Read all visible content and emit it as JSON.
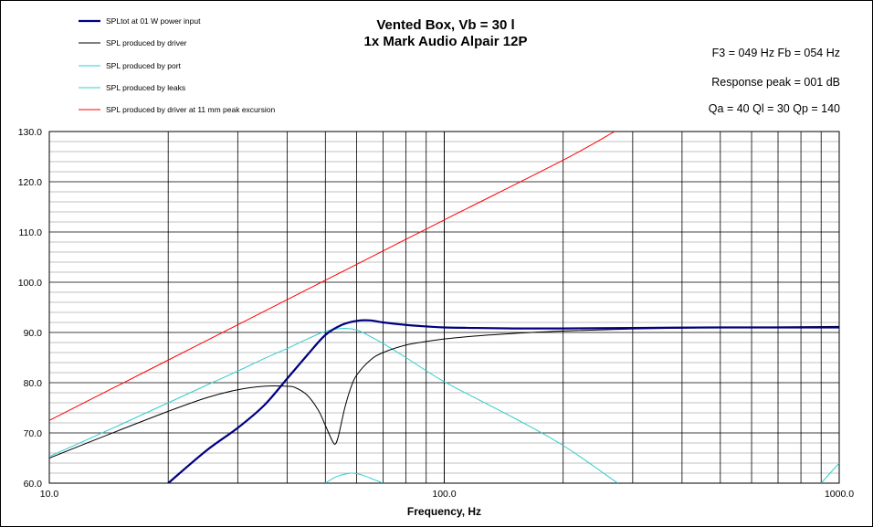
{
  "chart_data": {
    "type": "line",
    "title": "Vented Box, Vb = 30 l",
    "subtitle": "1x Mark Audio Alpair 12P",
    "info": [
      "F3 = 049 Hz  Fb = 054 Hz",
      "Response  peak = 001 dB",
      "Qa = 40  Ql = 30  Qp = 140"
    ],
    "xlabel": "Frequency, Hz",
    "ylabel": "",
    "xscale": "log",
    "xlim": [
      10,
      1000
    ],
    "ylim": [
      60,
      130
    ],
    "xticks": [
      "10.0",
      "100.0",
      "1000.0"
    ],
    "yticks": [
      "60.0",
      "70.0",
      "80.0",
      "90.0",
      "100.0",
      "110.0",
      "120.0",
      "130.0"
    ],
    "grid": true,
    "legend_position": "top-left",
    "series": [
      {
        "name": "SPLtot at 01 W power input",
        "color": "#000080",
        "x": [
          20,
          25,
          30,
          35,
          40,
          45,
          50,
          55,
          60,
          65,
          70,
          80,
          90,
          100,
          120,
          150,
          200,
          300,
          500,
          700,
          1000
        ],
        "y": [
          60,
          66.5,
          71,
          75.5,
          80.8,
          85.5,
          89.5,
          91.5,
          92.3,
          92.4,
          92.0,
          91.5,
          91.2,
          91.0,
          90.9,
          90.8,
          90.8,
          90.9,
          91.0,
          91.0,
          91.0
        ]
      },
      {
        "name": "SPL produced by driver",
        "color": "#000000",
        "x": [
          10,
          15,
          20,
          25,
          30,
          35,
          40,
          42,
          45,
          48,
          50,
          52,
          53,
          54,
          56,
          58,
          60,
          65,
          70,
          80,
          90,
          100,
          120,
          150,
          200,
          300,
          500,
          1000
        ],
        "y": [
          65,
          70.5,
          74.3,
          77,
          78.6,
          79.3,
          79.3,
          79,
          77.5,
          74.5,
          71.5,
          68.5,
          67.8,
          69.5,
          75,
          79,
          81.5,
          84.5,
          86,
          87.5,
          88.2,
          88.7,
          89.3,
          89.8,
          90.3,
          90.7,
          91.0,
          91.2
        ]
      },
      {
        "name": "SPL produced by port",
        "color": "#33CCCC",
        "x": [
          10,
          15,
          20,
          25,
          30,
          35,
          40,
          45,
          50,
          55,
          60,
          65,
          70,
          80,
          100,
          150,
          200,
          275
        ],
        "y": [
          65.3,
          71.5,
          76,
          79.5,
          82.3,
          84.8,
          86.8,
          88.7,
          90.2,
          90.8,
          90.5,
          89.2,
          87.8,
          85,
          80.2,
          73,
          67.5,
          60
        ]
      },
      {
        "name": "SPL produced by leaks",
        "color": "#33CCCC",
        "x": [
          50,
          53,
          56,
          58,
          60,
          62,
          65,
          70
        ],
        "y": [
          60,
          61.2,
          61.8,
          62.0,
          61.9,
          61.6,
          61,
          60
        ]
      },
      {
        "name": "SPL produced by driver at 11 mm peak excursion",
        "color": "#FF0000",
        "x": [
          10,
          20,
          50,
          100,
          200,
          270
        ],
        "y": [
          72.5,
          84.5,
          100.4,
          112.4,
          124.3,
          130
        ]
      }
    ],
    "extra_tail": {
      "color": "#33CCCC",
      "x": [
        900,
        1000
      ],
      "y": [
        60,
        64
      ]
    }
  }
}
